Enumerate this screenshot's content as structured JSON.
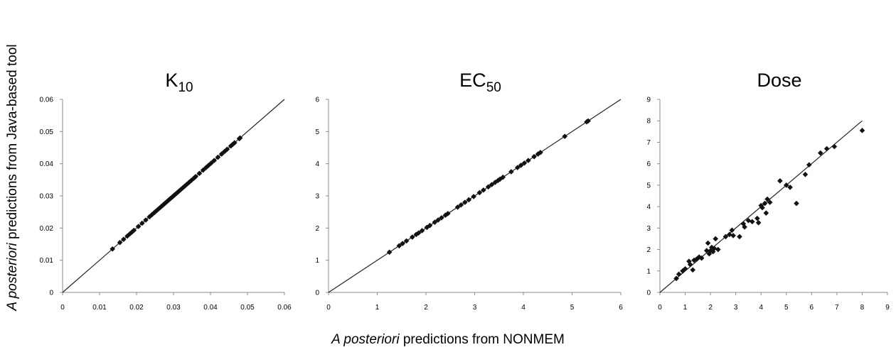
{
  "figure": {
    "ylabel_italic": "A posteriori",
    "ylabel_rest": " predictions from Java-based tool",
    "xlabel_italic": "A posteriori",
    "xlabel_rest": " predictions from NONMEM"
  },
  "chart_data": [
    {
      "type": "scatter",
      "title": "K",
      "title_subscript": "10",
      "xlabel": "",
      "ylabel": "",
      "xlim": [
        0,
        0.06
      ],
      "ylim": [
        0,
        0.06
      ],
      "xticks": [
        "0",
        "0.01",
        "0.02",
        "0.03",
        "0.04",
        "0.05",
        "0.06"
      ],
      "yticks": [
        "0",
        "0.01",
        "0.02",
        "0.03",
        "0.04",
        "0.05",
        "0.06"
      ],
      "grid": false,
      "identity_line": true,
      "series": [
        {
          "x": [
            0.0135,
            0.0155,
            0.0165,
            0.0175,
            0.0182,
            0.0188,
            0.0193,
            0.0205,
            0.0215,
            0.0225,
            0.0235,
            0.0242,
            0.0248,
            0.0252,
            0.0256,
            0.026,
            0.0264,
            0.0268,
            0.0271,
            0.0274,
            0.0277,
            0.028,
            0.0283,
            0.0286,
            0.0289,
            0.0292,
            0.0295,
            0.0298,
            0.0301,
            0.0304,
            0.0308,
            0.0312,
            0.0316,
            0.032,
            0.0325,
            0.033,
            0.0336,
            0.0342,
            0.0348,
            0.0355,
            0.036,
            0.037,
            0.038,
            0.0388,
            0.0395,
            0.0402,
            0.041,
            0.042,
            0.043,
            0.0438,
            0.0445,
            0.0455,
            0.046,
            0.0465,
            0.0478,
            0.048
          ],
          "y": [
            0.0135,
            0.0155,
            0.0165,
            0.0175,
            0.0182,
            0.0188,
            0.0193,
            0.0205,
            0.0215,
            0.0225,
            0.0235,
            0.0242,
            0.0248,
            0.0252,
            0.0256,
            0.026,
            0.0264,
            0.0268,
            0.0271,
            0.0274,
            0.0277,
            0.028,
            0.0283,
            0.0286,
            0.0289,
            0.0292,
            0.0295,
            0.0298,
            0.0301,
            0.0304,
            0.0308,
            0.0312,
            0.0316,
            0.032,
            0.0325,
            0.033,
            0.0336,
            0.0342,
            0.0348,
            0.0355,
            0.036,
            0.037,
            0.038,
            0.0388,
            0.0395,
            0.0402,
            0.041,
            0.042,
            0.043,
            0.0438,
            0.0445,
            0.0455,
            0.046,
            0.0465,
            0.0478,
            0.048
          ]
        }
      ]
    },
    {
      "type": "scatter",
      "title": "EC",
      "title_subscript": "50",
      "xlabel": "",
      "ylabel": "",
      "xlim": [
        0,
        6
      ],
      "ylim": [
        0,
        6
      ],
      "xticks": [
        "0",
        "1",
        "2",
        "3",
        "4",
        "5",
        "6"
      ],
      "yticks": [
        "0",
        "1",
        "2",
        "3",
        "4",
        "5",
        "6"
      ],
      "grid": false,
      "identity_line": true,
      "series": [
        {
          "x": [
            1.25,
            1.45,
            1.52,
            1.6,
            1.72,
            1.8,
            1.85,
            1.92,
            2.02,
            2.08,
            2.18,
            2.25,
            2.32,
            2.4,
            2.45,
            2.65,
            2.72,
            2.8,
            2.88,
            2.98,
            3.1,
            3.18,
            3.28,
            3.35,
            3.42,
            3.48,
            3.52,
            3.58,
            3.75,
            3.88,
            3.95,
            4.02,
            4.1,
            4.22,
            4.3,
            4.35,
            4.85,
            5.3,
            5.33
          ],
          "y": [
            1.25,
            1.45,
            1.52,
            1.6,
            1.72,
            1.8,
            1.85,
            1.92,
            2.02,
            2.08,
            2.18,
            2.25,
            2.32,
            2.4,
            2.45,
            2.65,
            2.72,
            2.8,
            2.88,
            2.98,
            3.1,
            3.18,
            3.28,
            3.35,
            3.42,
            3.48,
            3.52,
            3.58,
            3.75,
            3.88,
            3.95,
            4.02,
            4.1,
            4.22,
            4.3,
            4.35,
            4.85,
            5.3,
            5.33
          ]
        }
      ]
    },
    {
      "type": "scatter",
      "title": "Dose",
      "title_subscript": "",
      "xlabel": "",
      "ylabel": "",
      "xlim": [
        0,
        9
      ],
      "ylim": [
        0,
        9
      ],
      "xticks": [
        "0",
        "1",
        "2",
        "3",
        "4",
        "5",
        "6",
        "7",
        "8",
        "9"
      ],
      "yticks": [
        "0",
        "1",
        "2",
        "3",
        "4",
        "5",
        "6",
        "7",
        "8",
        "9"
      ],
      "grid": false,
      "identity_line": true,
      "series": [
        {
          "x": [
            0.65,
            0.75,
            0.9,
            1.0,
            1.15,
            1.2,
            1.3,
            1.35,
            1.45,
            1.55,
            1.65,
            1.85,
            1.9,
            1.95,
            2.0,
            2.05,
            2.1,
            2.15,
            2.2,
            2.3,
            2.6,
            2.75,
            2.85,
            2.9,
            3.15,
            3.3,
            3.35,
            3.5,
            3.65,
            3.85,
            3.9,
            4.0,
            4.05,
            4.15,
            4.2,
            4.25,
            4.35,
            4.75,
            5.0,
            5.15,
            5.4,
            5.75,
            5.9,
            6.35,
            6.6,
            6.9,
            8.0
          ],
          "y": [
            0.65,
            0.85,
            1.0,
            1.1,
            1.45,
            1.3,
            1.05,
            1.5,
            1.55,
            1.65,
            1.6,
            1.95,
            2.3,
            1.8,
            1.95,
            2.1,
            1.9,
            2.05,
            2.5,
            2.0,
            2.6,
            2.7,
            2.9,
            2.65,
            2.6,
            3.2,
            3.05,
            3.35,
            3.3,
            3.45,
            3.25,
            4.05,
            3.95,
            4.15,
            3.7,
            4.35,
            4.2,
            5.2,
            5.0,
            4.9,
            4.15,
            5.5,
            5.95,
            6.5,
            6.7,
            6.8,
            7.55
          ]
        }
      ]
    }
  ]
}
